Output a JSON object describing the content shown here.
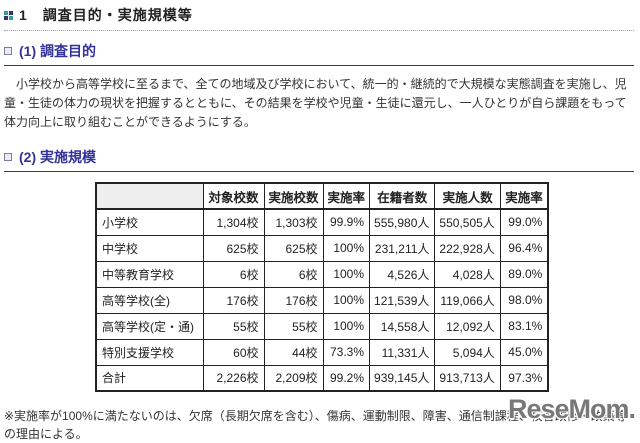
{
  "page": {
    "title": "1　調査目的・実施規模等",
    "watermark": "ReseMom."
  },
  "sections": {
    "purpose": {
      "heading": "(1) 調査目的",
      "body": "　小学校から高等学校に至るまで、全ての地域及び学校において、統一的・継続的で大規模な実態調査を実施し、児童・生徒の体力の現状を把握するとともに、その結果を学校や児童・生徒に還元し、一人ひとりが自ら課題をもって体力向上に取り組むことができるようにする。"
    },
    "scale": {
      "heading": "(2) 実施規模",
      "note": "※実施率が100%に満たないのは、欠席（長期欠席を含む）、傷病、運動制限、障害、通信制課程、校舎改修・改築等の理由による。"
    }
  },
  "table": {
    "headers": [
      "",
      "対象校数",
      "実施校数",
      "実施率",
      "在籍者数",
      "実施人数",
      "実施率"
    ],
    "rows": [
      [
        "小学校",
        "1,304校",
        "1,303校",
        "99.9%",
        "555,980人",
        "550,505人",
        "99.0%"
      ],
      [
        "中学校",
        "625校",
        "625校",
        "100%",
        "231,211人",
        "222,928人",
        "96.4%"
      ],
      [
        "中等教育学校",
        "6校",
        "6校",
        "100%",
        "4,526人",
        "4,028人",
        "89.0%"
      ],
      [
        "高等学校(全)",
        "176校",
        "176校",
        "100%",
        "121,539人",
        "119,066人",
        "98.0%"
      ],
      [
        "高等学校(定・通)",
        "55校",
        "55校",
        "100%",
        "14,558人",
        "12,092人",
        "83.1%"
      ],
      [
        "特別支援学校",
        "60校",
        "44校",
        "73.3%",
        "11,331人",
        "5,094人",
        "45.0%"
      ],
      [
        "合計",
        "2,226校",
        "2,209校",
        "99.2%",
        "939,145人",
        "913,713人",
        "97.3%"
      ]
    ]
  },
  "colors": {
    "heading_blue": "#333399",
    "underline_navy": "#333a66",
    "icon_teal": "#3d9a9a",
    "icon_navy": "#2e3a66",
    "table_border": "#222222",
    "watermark_gray": "#5a5a5a"
  }
}
